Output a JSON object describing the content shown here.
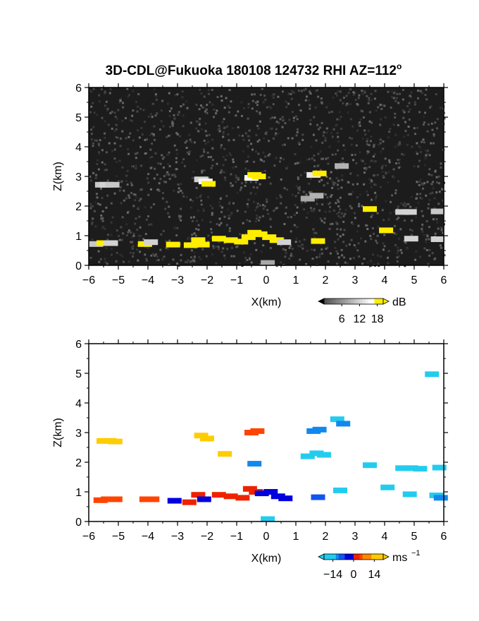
{
  "title": "3D-CDL@Fukuoka 180108 124732 RHI AZ=112",
  "title_superscript": "o",
  "chart_data": [
    {
      "type": "heatmap",
      "panel": "reflectivity",
      "xlabel": "X(km)",
      "ylabel": "Z(km)",
      "xlim": [
        -6,
        6
      ],
      "ylim": [
        0,
        6
      ],
      "xticks": [
        "−6",
        "−5",
        "−4",
        "−3",
        "−2",
        "−1",
        "0",
        "1",
        "2",
        "3",
        "4",
        "5",
        "6"
      ],
      "yticks": [
        "0",
        "1",
        "2",
        "3",
        "4",
        "5",
        "6"
      ],
      "background": "noise",
      "colorbar": {
        "unit": "dB",
        "ticks": [
          "6",
          "12",
          "18"
        ],
        "range": [
          0,
          20
        ]
      },
      "cells": [
        {
          "x": -5.55,
          "z": 2.72,
          "v": 11
        },
        {
          "x": -5.4,
          "z": 2.72,
          "v": 12
        },
        {
          "x": -5.2,
          "z": 2.72,
          "v": 11
        },
        {
          "x": -2.2,
          "z": 2.9,
          "v": 12
        },
        {
          "x": -2.05,
          "z": 2.83,
          "v": 15
        },
        {
          "x": -1.95,
          "z": 2.75,
          "v": 19
        },
        {
          "x": -0.5,
          "z": 2.95,
          "v": 16
        },
        {
          "x": -0.4,
          "z": 3.05,
          "v": 19
        },
        {
          "x": -0.25,
          "z": 3.0,
          "v": 19
        },
        {
          "x": 1.6,
          "z": 3.05,
          "v": 14
        },
        {
          "x": 1.8,
          "z": 3.1,
          "v": 19
        },
        {
          "x": 2.55,
          "z": 3.35,
          "v": 9
        },
        {
          "x": 1.4,
          "z": 2.25,
          "v": 8
        },
        {
          "x": 1.7,
          "z": 2.35,
          "v": 9
        },
        {
          "x": 3.5,
          "z": 1.9,
          "v": 19
        },
        {
          "x": 4.6,
          "z": 1.8,
          "v": 12
        },
        {
          "x": 4.85,
          "z": 1.8,
          "v": 12
        },
        {
          "x": 5.8,
          "z": 1.82,
          "v": 11
        },
        {
          "x": 4.05,
          "z": 1.18,
          "v": 18
        },
        {
          "x": 4.9,
          "z": 0.9,
          "v": 12
        },
        {
          "x": 5.8,
          "z": 0.88,
          "v": 12
        },
        {
          "x": -5.75,
          "z": 0.72,
          "v": 11
        },
        {
          "x": -5.5,
          "z": 0.75,
          "v": 19
        },
        {
          "x": -5.25,
          "z": 0.75,
          "v": 12
        },
        {
          "x": -4.1,
          "z": 0.72,
          "v": 19
        },
        {
          "x": -3.9,
          "z": 0.78,
          "v": 12
        },
        {
          "x": -3.15,
          "z": 0.7,
          "v": 19
        },
        {
          "x": -2.55,
          "z": 0.68,
          "v": 19
        },
        {
          "x": -2.3,
          "z": 0.85,
          "v": 19
        },
        {
          "x": -2.15,
          "z": 0.7,
          "v": 19
        },
        {
          "x": -1.6,
          "z": 0.9,
          "v": 19
        },
        {
          "x": -1.2,
          "z": 0.85,
          "v": 19
        },
        {
          "x": -0.85,
          "z": 0.8,
          "v": 19
        },
        {
          "x": -0.6,
          "z": 0.95,
          "v": 19
        },
        {
          "x": -0.4,
          "z": 1.1,
          "v": 19
        },
        {
          "x": -0.2,
          "z": 1.05,
          "v": 19
        },
        {
          "x": 0.1,
          "z": 0.95,
          "v": 19
        },
        {
          "x": 0.35,
          "z": 0.85,
          "v": 19
        },
        {
          "x": 0.6,
          "z": 0.78,
          "v": 12
        },
        {
          "x": 1.75,
          "z": 0.82,
          "v": 19
        },
        {
          "x": 0.05,
          "z": 0.08,
          "v": 8
        }
      ]
    },
    {
      "type": "heatmap",
      "panel": "doppler_velocity",
      "xlabel": "X(km)",
      "ylabel": "Z(km)",
      "xlim": [
        -6,
        6
      ],
      "ylim": [
        0,
        6
      ],
      "xticks": [
        "−6",
        "−5",
        "−4",
        "−3",
        "−2",
        "−1",
        "0",
        "1",
        "2",
        "3",
        "4",
        "5",
        "6"
      ],
      "yticks": [
        "0",
        "1",
        "2",
        "3",
        "4",
        "5",
        "6"
      ],
      "background": "white",
      "colorbar": {
        "unit": "ms",
        "unit_superscript": "−1",
        "ticks": [
          "−14",
          "0",
          "14"
        ],
        "range": [
          -20,
          20
        ]
      },
      "cells": [
        {
          "x": -5.5,
          "z": 2.72,
          "v": 14
        },
        {
          "x": -5.3,
          "z": 2.72,
          "v": 14
        },
        {
          "x": -5.1,
          "z": 2.7,
          "v": 13
        },
        {
          "x": -2.2,
          "z": 2.9,
          "v": 12
        },
        {
          "x": -2.0,
          "z": 2.8,
          "v": 13
        },
        {
          "x": -1.4,
          "z": 2.28,
          "v": 12
        },
        {
          "x": -0.5,
          "z": 3.0,
          "v": 5
        },
        {
          "x": -0.3,
          "z": 3.05,
          "v": 5
        },
        {
          "x": -0.4,
          "z": 1.95,
          "v": -10
        },
        {
          "x": 1.6,
          "z": 3.05,
          "v": -12
        },
        {
          "x": 1.8,
          "z": 3.1,
          "v": -11
        },
        {
          "x": 2.4,
          "z": 3.45,
          "v": -13
        },
        {
          "x": 2.6,
          "z": 3.3,
          "v": -12
        },
        {
          "x": 1.4,
          "z": 2.2,
          "v": -14
        },
        {
          "x": 1.7,
          "z": 2.3,
          "v": -15
        },
        {
          "x": 1.95,
          "z": 2.25,
          "v": -14
        },
        {
          "x": 3.5,
          "z": 1.9,
          "v": -15
        },
        {
          "x": 4.6,
          "z": 1.8,
          "v": -15
        },
        {
          "x": 4.9,
          "z": 1.8,
          "v": -15
        },
        {
          "x": 5.2,
          "z": 1.78,
          "v": -15
        },
        {
          "x": 5.85,
          "z": 1.82,
          "v": -15
        },
        {
          "x": 5.6,
          "z": 4.97,
          "v": -15
        },
        {
          "x": 4.1,
          "z": 1.15,
          "v": -15
        },
        {
          "x": 4.85,
          "z": 0.92,
          "v": -14
        },
        {
          "x": 5.75,
          "z": 0.88,
          "v": -13
        },
        {
          "x": 5.9,
          "z": 0.8,
          "v": -12
        },
        {
          "x": -5.6,
          "z": 0.72,
          "v": 5
        },
        {
          "x": -5.35,
          "z": 0.75,
          "v": 5
        },
        {
          "x": -5.1,
          "z": 0.75,
          "v": 5
        },
        {
          "x": -4.05,
          "z": 0.75,
          "v": 5
        },
        {
          "x": -3.85,
          "z": 0.75,
          "v": 5
        },
        {
          "x": -3.1,
          "z": 0.7,
          "v": -5
        },
        {
          "x": -2.6,
          "z": 0.65,
          "v": 4
        },
        {
          "x": -2.3,
          "z": 0.9,
          "v": 4
        },
        {
          "x": -2.1,
          "z": 0.75,
          "v": -5
        },
        {
          "x": -1.6,
          "z": 0.9,
          "v": 4
        },
        {
          "x": -1.2,
          "z": 0.85,
          "v": 4
        },
        {
          "x": -0.8,
          "z": 0.8,
          "v": 4
        },
        {
          "x": -0.55,
          "z": 1.1,
          "v": 3
        },
        {
          "x": -0.35,
          "z": 1.0,
          "v": 3
        },
        {
          "x": -0.15,
          "z": 0.95,
          "v": -5
        },
        {
          "x": 0.15,
          "z": 1.0,
          "v": -5
        },
        {
          "x": 0.4,
          "z": 0.85,
          "v": -5
        },
        {
          "x": 0.65,
          "z": 0.78,
          "v": -5
        },
        {
          "x": 1.75,
          "z": 0.82,
          "v": -9
        },
        {
          "x": 2.5,
          "z": 1.05,
          "v": -13
        },
        {
          "x": 0.05,
          "z": 0.08,
          "v": -15
        }
      ]
    }
  ]
}
